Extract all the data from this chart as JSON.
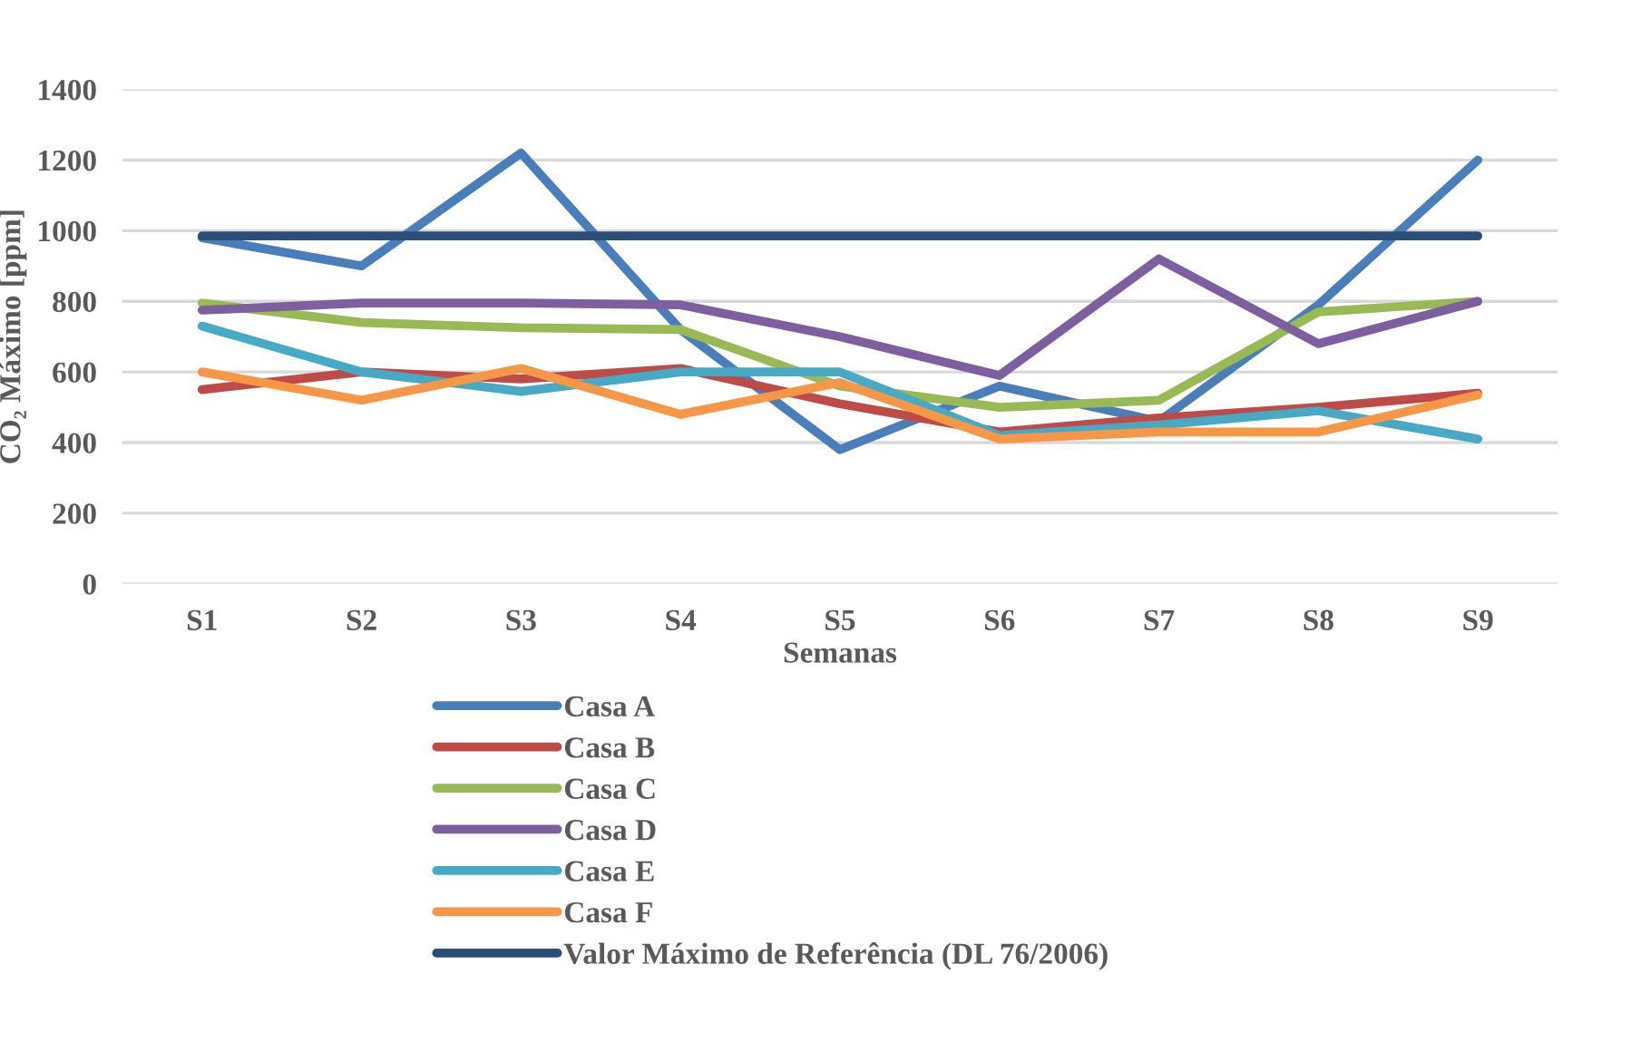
{
  "chart_data": {
    "type": "line",
    "xlabel": "Semanas",
    "ylabel": "CO₂ Máximo [ppm]",
    "categories": [
      "S1",
      "S2",
      "S3",
      "S4",
      "S5",
      "S6",
      "S7",
      "S8",
      "S9"
    ],
    "series": [
      {
        "name": "Casa A",
        "color": "#4a7ebb",
        "values": [
          980,
          900,
          1220,
          720,
          380,
          560,
          460,
          790,
          1200
        ]
      },
      {
        "name": "Casa B",
        "color": "#be4b48",
        "values": [
          550,
          600,
          580,
          610,
          510,
          430,
          470,
          500,
          540
        ]
      },
      {
        "name": "Casa C",
        "color": "#98b954",
        "values": [
          795,
          740,
          725,
          720,
          560,
          500,
          520,
          770,
          800
        ]
      },
      {
        "name": "Casa D",
        "color": "#7d5fa0",
        "values": [
          775,
          795,
          795,
          790,
          700,
          590,
          920,
          680,
          800
        ]
      },
      {
        "name": "Casa E",
        "color": "#46aac5",
        "values": [
          730,
          600,
          545,
          600,
          600,
          420,
          450,
          490,
          410
        ]
      },
      {
        "name": "Casa F",
        "color": "#f79646",
        "values": [
          600,
          520,
          610,
          480,
          570,
          410,
          430,
          430,
          535
        ]
      },
      {
        "name": "Valor Máximo de Referência (DL 76/2006)",
        "color": "#2c4d75",
        "values": [
          985,
          985,
          985,
          985,
          985,
          985,
          985,
          985,
          985
        ]
      }
    ],
    "ylim": [
      0,
      1400
    ],
    "yticks": [
      0,
      200,
      400,
      600,
      800,
      1000,
      1200,
      1400
    ],
    "grid": "y",
    "legend": "bottom",
    "marker": "none",
    "line_style": "solid"
  }
}
